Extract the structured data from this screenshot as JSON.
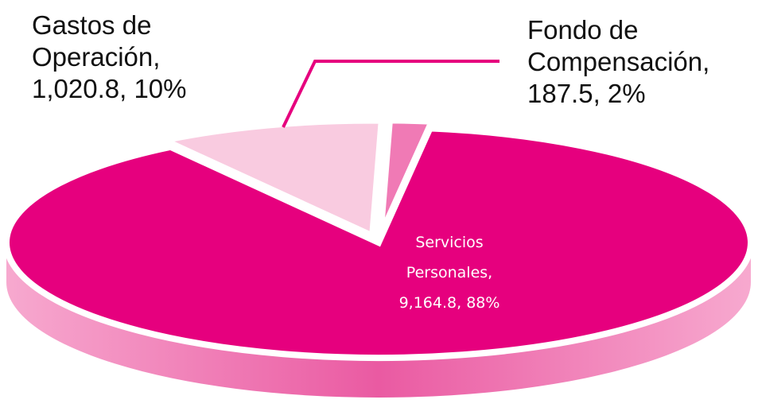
{
  "chart_data": {
    "type": "pie",
    "categories": [
      "Servicios Personales,",
      "Gastos de Operación,",
      "Fondo de Compensación,"
    ],
    "values": [
      9164.8,
      1020.8,
      187.5
    ],
    "value_labels": [
      "9,164.8,",
      "1,020.8,",
      "187.5,"
    ],
    "percentages": [
      88,
      10,
      2
    ],
    "percentage_labels": [
      "88%",
      "10%",
      "2%"
    ],
    "colors": [
      "#e6007e",
      "#f9cbe0",
      "#f07ab5"
    ]
  }
}
